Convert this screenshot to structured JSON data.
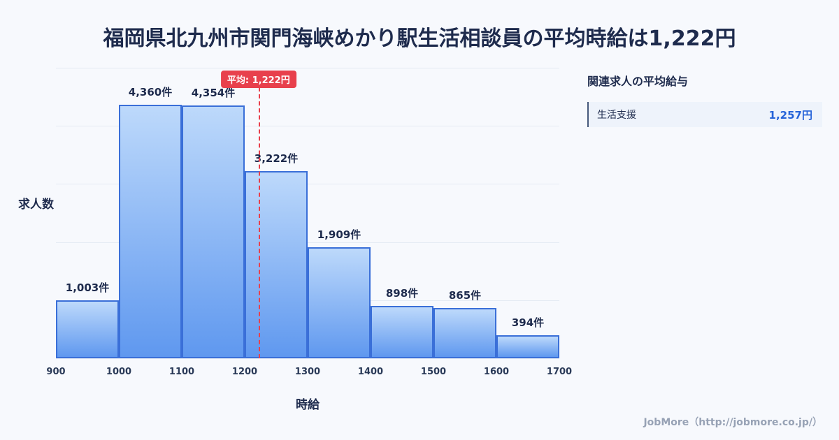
{
  "page": {
    "footer": "JobMore（http://jobmore.co.jp/）"
  },
  "chart_data": {
    "type": "bar",
    "title": "福岡県北九州市関門海峡めかり駅生活相談員の平均時給は1,222円",
    "xlabel": "時給",
    "ylabel": "求人数",
    "x_range": [
      900,
      1700
    ],
    "x_ticks": [
      "900",
      "1000",
      "1100",
      "1200",
      "1300",
      "1400",
      "1500",
      "1600",
      "1700"
    ],
    "ylim": [
      0,
      5000
    ],
    "grid": true,
    "legend": "none",
    "bins": [
      {
        "range": [
          900,
          1000
        ],
        "value": 1003,
        "label": "1,003件"
      },
      {
        "range": [
          1000,
          1100
        ],
        "value": 4360,
        "label": "4,360件"
      },
      {
        "range": [
          1100,
          1200
        ],
        "value": 4354,
        "label": "4,354件"
      },
      {
        "range": [
          1200,
          1300
        ],
        "value": 3222,
        "label": "3,222件"
      },
      {
        "range": [
          1300,
          1400
        ],
        "value": 1909,
        "label": "1,909件"
      },
      {
        "range": [
          1400,
          1500
        ],
        "value": 898,
        "label": "898件"
      },
      {
        "range": [
          1500,
          1600
        ],
        "value": 865,
        "label": "865件"
      },
      {
        "range": [
          1600,
          1700
        ],
        "value": 394,
        "label": "394件"
      }
    ],
    "average": {
      "value": 1222,
      "label": "平均: 1,222円"
    },
    "colors": {
      "bar_fill_top": "#bdd9fb",
      "bar_fill_bottom": "#5f98ef",
      "bar_border": "#3a6fd8",
      "average_line": "#e8404c",
      "title_text": "#1e2b4d",
      "related_salary": "#2563d9"
    }
  },
  "side_panel": {
    "heading": "関連求人の平均給与",
    "items": [
      {
        "name": "生活支援",
        "salary": "1,257円"
      }
    ]
  }
}
